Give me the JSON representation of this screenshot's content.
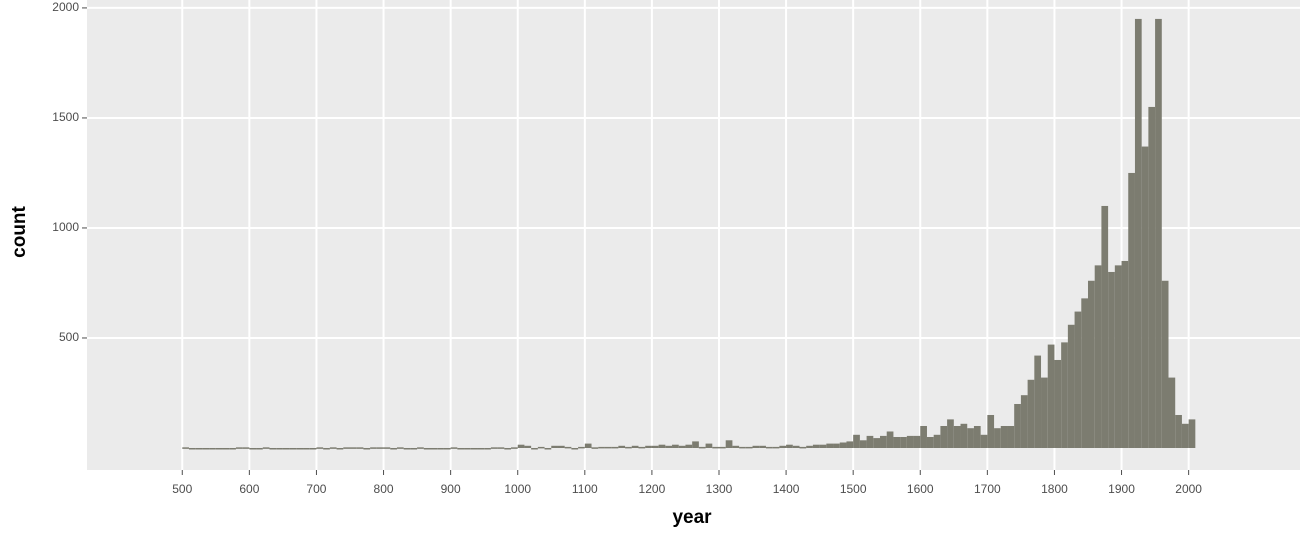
{
  "chart_data": {
    "type": "histogram",
    "x_label": "year",
    "y_label": "count",
    "color": "#7c7c70",
    "grid": true,
    "bins": [
      500,
      510,
      520,
      530,
      540,
      550,
      560,
      570,
      580,
      590,
      600,
      610,
      620,
      630,
      640,
      650,
      660,
      670,
      680,
      690,
      700,
      710,
      720,
      730,
      740,
      750,
      760,
      770,
      780,
      790,
      800,
      810,
      820,
      830,
      840,
      850,
      860,
      870,
      880,
      890,
      900,
      910,
      920,
      930,
      940,
      950,
      960,
      970,
      980,
      990,
      1000,
      1010,
      1020,
      1030,
      1040,
      1050,
      1060,
      1070,
      1080,
      1090,
      1100,
      1110,
      1120,
      1130,
      1140,
      1150,
      1160,
      1170,
      1180,
      1190,
      1200,
      1210,
      1220,
      1230,
      1240,
      1250,
      1260,
      1270,
      1280,
      1290,
      1300,
      1310,
      1320,
      1330,
      1340,
      1350,
      1360,
      1370,
      1380,
      1390,
      1400,
      1410,
      1420,
      1430,
      1440,
      1450,
      1460,
      1470,
      1480,
      1490,
      1500,
      1510,
      1520,
      1530,
      1540,
      1550,
      1560,
      1570,
      1580,
      1590,
      1600,
      1610,
      1620,
      1630,
      1640,
      1650,
      1660,
      1670,
      1680,
      1690,
      1700,
      1710,
      1720,
      1730,
      1740,
      1750,
      1760,
      1770,
      1780,
      1790,
      1800,
      1810,
      1820,
      1830,
      1840,
      1850,
      1860,
      1870,
      1880,
      1890,
      1900,
      1910,
      1920,
      1930,
      1940,
      1950,
      1960,
      1970,
      1980,
      1990,
      2000,
      2010
    ],
    "values": [
      3,
      0,
      0,
      0,
      0,
      0,
      0,
      0,
      3,
      3,
      0,
      0,
      3,
      0,
      0,
      0,
      0,
      0,
      0,
      0,
      3,
      0,
      3,
      0,
      3,
      3,
      3,
      0,
      3,
      3,
      3,
      0,
      3,
      0,
      0,
      3,
      0,
      0,
      0,
      0,
      3,
      0,
      0,
      0,
      0,
      0,
      3,
      3,
      0,
      3,
      15,
      10,
      0,
      5,
      0,
      10,
      10,
      5,
      0,
      5,
      20,
      3,
      5,
      5,
      5,
      10,
      5,
      10,
      5,
      10,
      10,
      15,
      10,
      15,
      10,
      15,
      30,
      5,
      20,
      5,
      5,
      35,
      10,
      5,
      5,
      10,
      10,
      5,
      5,
      10,
      15,
      10,
      5,
      10,
      15,
      15,
      20,
      20,
      25,
      30,
      60,
      35,
      55,
      45,
      55,
      75,
      50,
      50,
      55,
      55,
      100,
      50,
      60,
      100,
      130,
      100,
      110,
      90,
      100,
      60,
      150,
      90,
      100,
      100,
      200,
      240,
      310,
      420,
      320,
      470,
      400,
      480,
      560,
      620,
      680,
      760,
      830,
      1100,
      800,
      830,
      850,
      1250,
      1950,
      1370,
      1550,
      1950,
      760,
      320,
      150,
      110,
      130
    ],
    "xlim": [
      358,
      2166
    ],
    "ylim": [
      -100,
      2036
    ],
    "xticks": [
      500,
      600,
      700,
      800,
      900,
      1000,
      1100,
      1200,
      1300,
      1400,
      1500,
      1600,
      1700,
      1800,
      1900,
      2000
    ],
    "yticks": [
      500,
      1000,
      1500,
      2000
    ]
  }
}
